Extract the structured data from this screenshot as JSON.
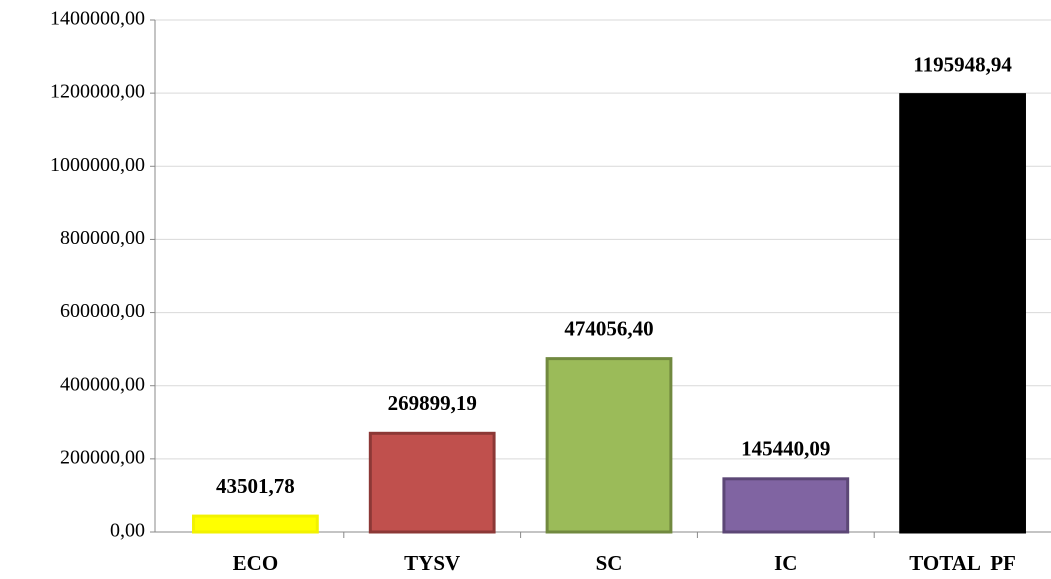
{
  "chart_data": {
    "type": "bar",
    "categories": [
      "ECO",
      "TYSV",
      "SC",
      "IC",
      "TOTAL  PF"
    ],
    "values": [
      43501.78,
      269899.19,
      474056.4,
      145440.09,
      1195948.94
    ],
    "value_labels": [
      "43501,78",
      "269899,19",
      "474056,40",
      "145440,09",
      "1195948,94"
    ],
    "colors": [
      "#ffff00",
      "#c0504d",
      "#9bbb59",
      "#8064a2",
      "#000000"
    ],
    "edgecolors": [
      "#f2f200",
      "#8c3836",
      "#71893f",
      "#5c4776",
      "#000000"
    ],
    "ylim": [
      0,
      1400000
    ],
    "yticks": [
      {
        "value": 0,
        "label": "0,00"
      },
      {
        "value": 200000,
        "label": "200000,00"
      },
      {
        "value": 400000,
        "label": "400000,00"
      },
      {
        "value": 600000,
        "label": "600000,00"
      },
      {
        "value": 800000,
        "label": "800000,00"
      },
      {
        "value": 1000000,
        "label": "1000000,00"
      },
      {
        "value": 1200000,
        "label": "1200000,00"
      },
      {
        "value": 1400000,
        "label": "1400000,00"
      }
    ],
    "grid": true
  }
}
